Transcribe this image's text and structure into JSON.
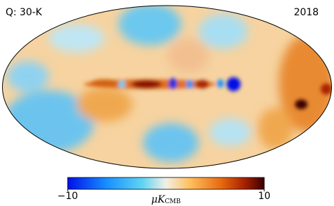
{
  "header": {
    "left": "Q: 30-K",
    "right": "2018"
  },
  "colorbar": {
    "lim": [
      -10,
      10
    ],
    "ticks": [
      {
        "value": -10,
        "label": "−10"
      },
      10
    ],
    "label_symbol": "μK",
    "label_subscript": "CMB"
  }
}
